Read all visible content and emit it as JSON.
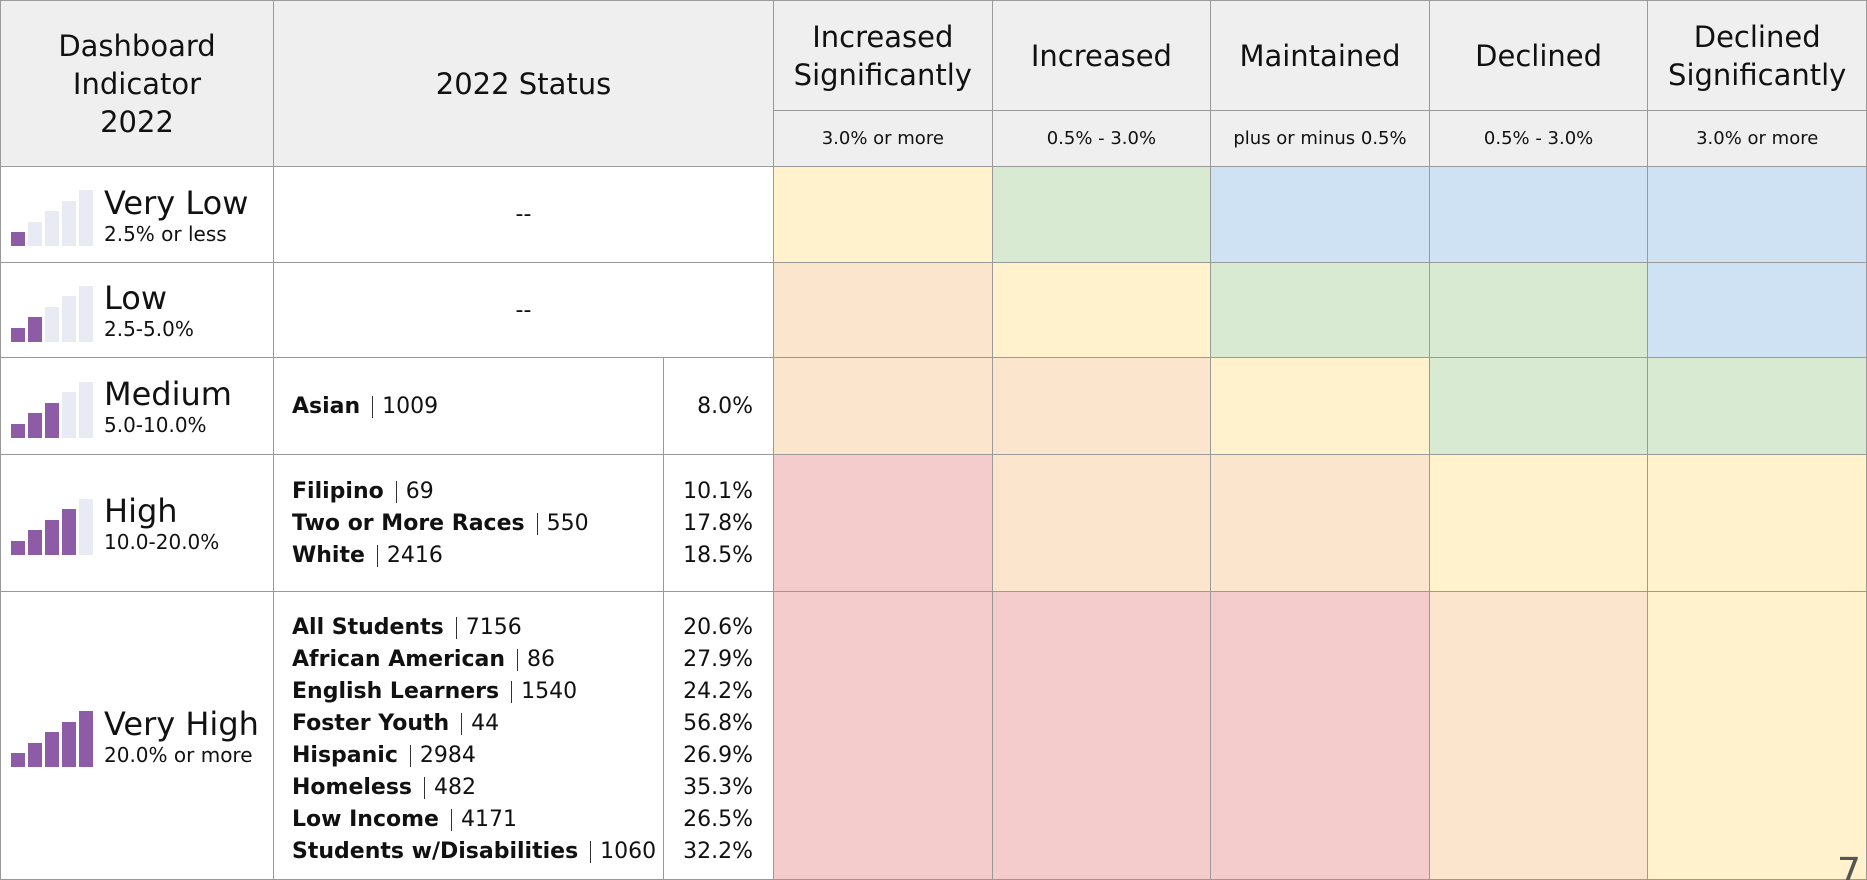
{
  "header": {
    "indicator": "Dashboard Indicator 2022",
    "status": "2022 Status",
    "columns": [
      {
        "title": "Increased Significantly",
        "range": "3.0% or more"
      },
      {
        "title": "Increased",
        "range": "0.5% - 3.0%"
      },
      {
        "title": "Maintained",
        "range": "plus or minus 0.5%"
      },
      {
        "title": "Declined",
        "range": "0.5% - 3.0%"
      },
      {
        "title": "Declined Significantly",
        "range": "3.0% or more"
      }
    ]
  },
  "rows": [
    {
      "level": "Very Low",
      "range": "2.5% or less",
      "status": "--",
      "groups": [],
      "colors": [
        "#fff2cc",
        "#d9ead3",
        "#cfe2f3",
        "#cfe2f3",
        "#cfe2f3"
      ]
    },
    {
      "level": "Low",
      "range": "2.5-5.0%",
      "status": "--",
      "groups": [],
      "colors": [
        "#fce5cd",
        "#fff2cc",
        "#d9ead3",
        "#d9ead3",
        "#cfe2f3"
      ]
    },
    {
      "level": "Medium",
      "range": "5.0-10.0%",
      "groups": [
        {
          "name": "Asian",
          "count": 1009,
          "rate": "8.0%"
        }
      ],
      "colors": [
        "#fce5cd",
        "#fce5cd",
        "#fff2cc",
        "#d9ead3",
        "#d9ead3"
      ]
    },
    {
      "level": "High",
      "range": "10.0-20.0%",
      "groups": [
        {
          "name": "Filipino",
          "count": 69,
          "rate": "10.1%"
        },
        {
          "name": "Two or More Races",
          "count": 550,
          "rate": "17.8%"
        },
        {
          "name": "White",
          "count": 2416,
          "rate": "18.5%"
        }
      ],
      "colors": [
        "#f4cccc",
        "#fce5cd",
        "#fce5cd",
        "#fff2cc",
        "#fff2cc"
      ]
    },
    {
      "level": "Very High",
      "range": "20.0% or more",
      "groups": [
        {
          "name": "All Students",
          "count": 7156,
          "rate": "20.6%"
        },
        {
          "name": "African American",
          "count": 86,
          "rate": "27.9%"
        },
        {
          "name": "English Learners",
          "count": 1540,
          "rate": "24.2%"
        },
        {
          "name": "Foster Youth",
          "count": 44,
          "rate": "56.8%"
        },
        {
          "name": "Hispanic",
          "count": 2984,
          "rate": "26.9%"
        },
        {
          "name": "Homeless",
          "count": 482,
          "rate": "35.3%"
        },
        {
          "name": "Low Income",
          "count": 4171,
          "rate": "26.5%"
        },
        {
          "name": "Students w/Disabilities",
          "count": 1060,
          "rate": "32.2%"
        }
      ],
      "colors": [
        "#f4cccc",
        "#f4cccc",
        "#f4cccc",
        "#fce5cd",
        "#fff2cc"
      ]
    }
  ],
  "page_number": "7"
}
